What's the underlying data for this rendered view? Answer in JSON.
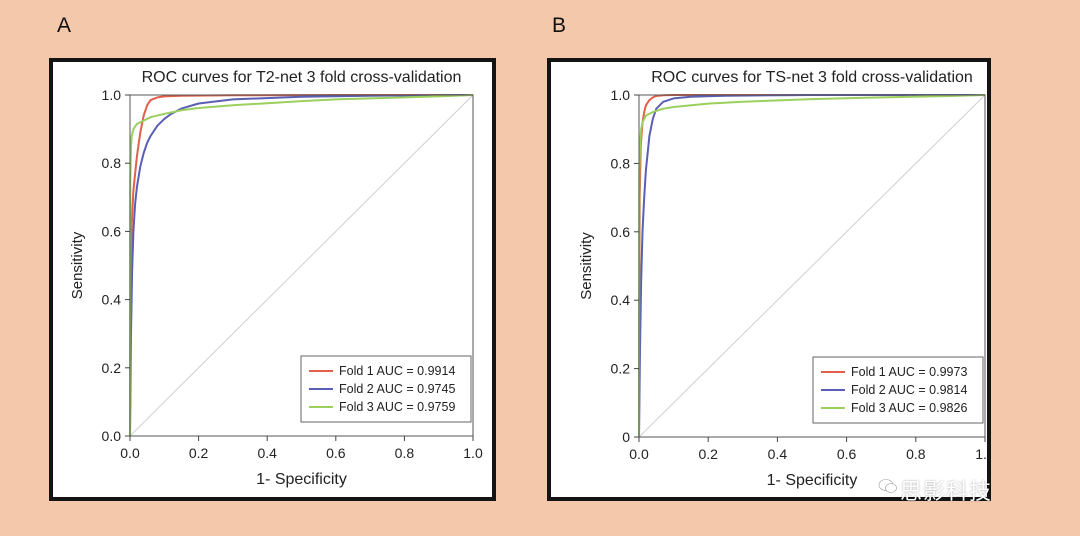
{
  "panel_labels": [
    "A",
    "B"
  ],
  "watermark": "思影科技",
  "chart_data": [
    {
      "type": "line",
      "title": "ROC curves for T2-net 3 fold cross-validation",
      "xlabel": "1- Specificity",
      "ylabel": "Sensitivity",
      "xlim": [
        0,
        1
      ],
      "ylim": [
        0,
        1
      ],
      "xticks": [
        "0.0",
        "0.2",
        "0.4",
        "0.6",
        "0.8",
        "1.0"
      ],
      "yticks": [
        "0.0",
        "0.2",
        "0.4",
        "0.6",
        "0.8",
        "1.0"
      ],
      "legend_position": "bottom-right",
      "grid": false,
      "diagonal": true,
      "series": [
        {
          "name": "Fold 1 AUC = 0.9914",
          "color": "#e0604a",
          "x": [
            0,
            0.002,
            0.005,
            0.01,
            0.02,
            0.03,
            0.04,
            0.05,
            0.06,
            0.08,
            0.1,
            0.15,
            0.3,
            0.6,
            1.0
          ],
          "y": [
            0,
            0.45,
            0.62,
            0.72,
            0.82,
            0.89,
            0.94,
            0.97,
            0.985,
            0.993,
            0.996,
            0.998,
            0.999,
            1.0,
            1.0
          ]
        },
        {
          "name": "Fold 2 AUC = 0.9745",
          "color": "#5a5fb3",
          "x": [
            0,
            0.003,
            0.006,
            0.01,
            0.015,
            0.02,
            0.03,
            0.04,
            0.05,
            0.06,
            0.08,
            0.1,
            0.12,
            0.15,
            0.2,
            0.3,
            0.5,
            0.7,
            1.0
          ],
          "y": [
            0,
            0.3,
            0.48,
            0.6,
            0.68,
            0.73,
            0.79,
            0.83,
            0.86,
            0.88,
            0.91,
            0.93,
            0.945,
            0.96,
            0.975,
            0.987,
            0.995,
            0.998,
            1.0
          ]
        },
        {
          "name": "Fold 3 AUC = 0.9759",
          "color": "#9bd05e",
          "x": [
            0,
            0.001,
            0.003,
            0.005,
            0.01,
            0.02,
            0.04,
            0.06,
            0.1,
            0.15,
            0.2,
            0.3,
            0.4,
            0.5,
            0.6,
            0.7,
            0.8,
            0.9,
            1.0
          ],
          "y": [
            0,
            0.75,
            0.85,
            0.88,
            0.9,
            0.915,
            0.925,
            0.935,
            0.945,
            0.955,
            0.962,
            0.97,
            0.976,
            0.982,
            0.987,
            0.99,
            0.993,
            0.996,
            1.0
          ]
        }
      ]
    },
    {
      "type": "line",
      "title": "ROC curves for TS-net 3 fold cross-validation",
      "xlabel": "1- Specificity",
      "ylabel": "Sensitivity",
      "xlim": [
        0,
        1
      ],
      "ylim": [
        0,
        1
      ],
      "xticks": [
        "0.0",
        "0.2",
        "0.4",
        "0.6",
        "0.8",
        "1.0"
      ],
      "yticks": [
        "0",
        "0.2",
        "0.4",
        "0.6",
        "0.8",
        "1.0"
      ],
      "legend_position": "bottom-right",
      "grid": false,
      "diagonal": true,
      "series": [
        {
          "name": "Fold 1 AUC = 0.9973",
          "color": "#e0604a",
          "x": [
            0,
            0.002,
            0.005,
            0.01,
            0.015,
            0.02,
            0.03,
            0.04,
            0.05,
            0.07,
            0.1,
            0.2,
            0.5,
            1.0
          ],
          "y": [
            0,
            0.7,
            0.85,
            0.92,
            0.95,
            0.97,
            0.985,
            0.993,
            0.997,
            0.999,
            1.0,
            1.0,
            1.0,
            1.0
          ]
        },
        {
          "name": "Fold 2 AUC = 0.9814",
          "color": "#5a5fb3",
          "x": [
            0,
            0.003,
            0.006,
            0.01,
            0.015,
            0.02,
            0.03,
            0.04,
            0.05,
            0.07,
            0.1,
            0.15,
            0.25,
            0.5,
            1.0
          ],
          "y": [
            0,
            0.25,
            0.45,
            0.6,
            0.7,
            0.78,
            0.88,
            0.93,
            0.96,
            0.98,
            0.99,
            0.995,
            0.998,
            1.0,
            1.0
          ]
        },
        {
          "name": "Fold 3 AUC = 0.9826",
          "color": "#9bd05e",
          "x": [
            0,
            0.001,
            0.003,
            0.006,
            0.01,
            0.02,
            0.04,
            0.07,
            0.1,
            0.2,
            0.3,
            0.5,
            0.7,
            0.9,
            1.0
          ],
          "y": [
            0,
            0.78,
            0.85,
            0.9,
            0.92,
            0.94,
            0.95,
            0.96,
            0.965,
            0.975,
            0.98,
            0.988,
            0.993,
            0.997,
            1.0
          ]
        }
      ]
    }
  ]
}
